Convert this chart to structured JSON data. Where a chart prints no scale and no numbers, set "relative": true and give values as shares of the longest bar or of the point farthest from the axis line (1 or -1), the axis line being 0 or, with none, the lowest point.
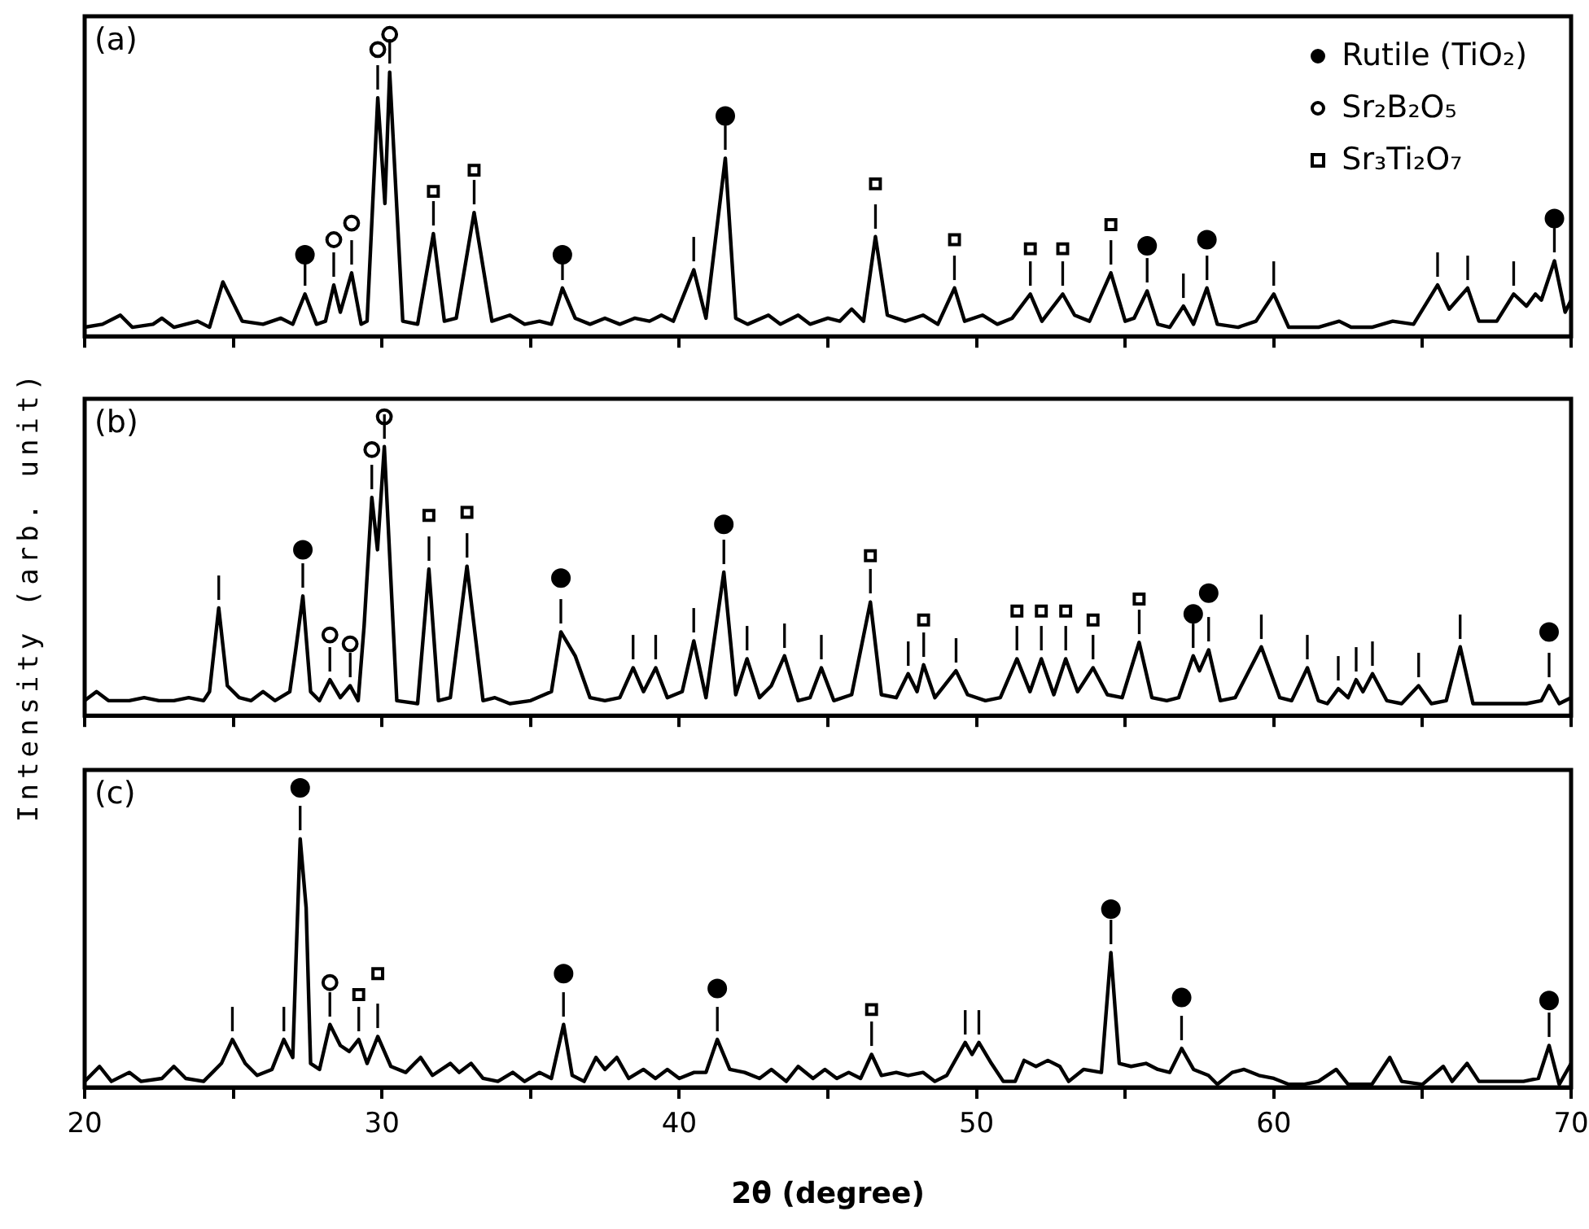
{
  "chart_data": [
    {
      "type": "line",
      "relative": true,
      "xlim": [
        20,
        70
      ],
      "xticks": [
        20,
        {
          "value": 25,
          "label": null
        },
        30,
        {
          "value": 35,
          "label": null
        },
        40,
        {
          "value": 45,
          "label": null
        },
        50,
        {
          "value": 55,
          "label": null
        },
        60,
        {
          "value": 65,
          "label": null
        },
        70
      ],
      "tick_labels": false,
      "legend": "top right",
      "annotations": [
        "(a)",
        {
          "text": "|",
          "x": 27.41,
          "y": 0.14
        },
        {
          "text": "|",
          "x": 36.07,
          "y": 0.16
        },
        {
          "text": "|",
          "x": 41.55,
          "y": 0.59
        },
        {
          "text": "|",
          "x": 55.74,
          "y": 0.15
        },
        {
          "text": "|",
          "x": 57.75,
          "y": 0.16
        },
        {
          "text": "|",
          "x": 69.44,
          "y": 0.25
        },
        {
          "text": "|",
          "x": 28.38,
          "y": 0.17
        },
        {
          "text": "|",
          "x": 28.98,
          "y": 0.21
        },
        {
          "text": "|",
          "x": 29.86,
          "y": 0.79
        },
        {
          "text": "|",
          "x": 30.26,
          "y": 0.875
        },
        {
          "text": "|",
          "x": 31.73,
          "y": 0.34
        },
        {
          "text": "|",
          "x": 33.1,
          "y": 0.41
        },
        {
          "text": "|",
          "x": 46.6,
          "y": 0.33
        },
        {
          "text": "|",
          "x": 49.26,
          "y": 0.16
        },
        {
          "text": "|",
          "x": 51.81,
          "y": 0.14
        },
        {
          "text": "|",
          "x": 52.9,
          "y": 0.14
        },
        {
          "text": "|",
          "x": 54.52,
          "y": 0.21
        },
        {
          "text": "|",
          "x": 40.49,
          "y": 0.22
        },
        {
          "text": "|",
          "x": 56.96,
          "y": 0.1
        },
        {
          "text": "|",
          "x": 60.0,
          "y": 0.14
        },
        {
          "text": "|",
          "x": 65.51,
          "y": 0.17
        },
        {
          "text": "|",
          "x": 66.52,
          "y": 0.16
        },
        {
          "text": "|",
          "x": 68.07,
          "y": 0.14
        }
      ],
      "series": [
        {
          "color": "#000000",
          "marker": "none",
          "x": [
            20,
            20.6,
            21.2,
            21.6,
            22.3,
            22.6,
            23.0,
            23.8,
            24.2,
            24.65,
            25.3,
            26.0,
            26.6,
            27.0,
            27.41,
            27.8,
            28.1,
            28.38,
            28.6,
            28.98,
            29.3,
            29.5,
            29.86,
            30.1,
            30.26,
            30.7,
            31.2,
            31.73,
            32.1,
            32.5,
            33.1,
            33.7,
            34.3,
            34.8,
            35.3,
            35.7,
            36.07,
            36.5,
            37.0,
            37.5,
            38.0,
            38.5,
            39.0,
            39.4,
            39.8,
            40.49,
            40.9,
            41.55,
            41.9,
            42.3,
            43.0,
            43.4,
            44.0,
            44.4,
            45.0,
            45.4,
            45.8,
            46.2,
            46.6,
            47.0,
            47.6,
            48.2,
            48.7,
            49.26,
            49.6,
            50.2,
            50.7,
            51.2,
            51.81,
            52.2,
            52.9,
            53.3,
            53.8,
            54.52,
            55.0,
            55.3,
            55.74,
            56.1,
            56.5,
            56.96,
            57.3,
            57.75,
            58.1,
            58.8,
            59.4,
            60.0,
            60.5,
            61.5,
            62.2,
            62.6,
            63.3,
            64.0,
            64.7,
            65.51,
            65.9,
            66.52,
            66.9,
            67.5,
            68.07,
            68.5,
            68.8,
            69.0,
            69.44,
            69.8,
            70
          ],
          "values": [
            0.03,
            0.04,
            0.07,
            0.03,
            0.04,
            0.06,
            0.03,
            0.05,
            0.03,
            0.18,
            0.05,
            0.04,
            0.06,
            0.04,
            0.14,
            0.04,
            0.05,
            0.17,
            0.08,
            0.21,
            0.04,
            0.05,
            0.79,
            0.44,
            0.875,
            0.05,
            0.04,
            0.34,
            0.05,
            0.06,
            0.41,
            0.05,
            0.07,
            0.04,
            0.05,
            0.04,
            0.16,
            0.06,
            0.04,
            0.06,
            0.04,
            0.06,
            0.05,
            0.07,
            0.05,
            0.22,
            0.06,
            0.59,
            0.06,
            0.04,
            0.07,
            0.04,
            0.07,
            0.04,
            0.06,
            0.05,
            0.09,
            0.05,
            0.33,
            0.07,
            0.05,
            0.07,
            0.04,
            0.16,
            0.05,
            0.07,
            0.04,
            0.06,
            0.14,
            0.05,
            0.14,
            0.07,
            0.05,
            0.21,
            0.05,
            0.06,
            0.15,
            0.04,
            0.03,
            0.1,
            0.04,
            0.16,
            0.04,
            0.03,
            0.05,
            0.14,
            0.03,
            0.03,
            0.05,
            0.03,
            0.03,
            0.05,
            0.04,
            0.17,
            0.09,
            0.16,
            0.05,
            0.05,
            0.14,
            0.1,
            0.14,
            0.12,
            0.25,
            0.08,
            0.12
          ]
        },
        {
          "name": "Rutile (TiO₂)",
          "type": "scatter",
          "marker": "circle",
          "color": "#000000",
          "x": [
            27.41,
            36.07,
            41.55,
            55.74,
            57.75,
            69.44
          ],
          "values": [
            0.27,
            0.27,
            0.73,
            0.3,
            0.32,
            0.39
          ]
        },
        {
          "name": "Sr₂B₂O₅",
          "type": "scatter",
          "marker": "circle",
          "color": "#ffffff",
          "x": [
            28.38,
            28.98,
            29.86,
            30.26
          ],
          "values": [
            0.32,
            0.375,
            0.95,
            1.0
          ]
        },
        {
          "name": "Sr₃Ti₂O₇",
          "type": "scatter",
          "marker": "square",
          "color": "#ffffff",
          "x": [
            31.73,
            33.1,
            46.6,
            49.26,
            51.81,
            52.9,
            54.52
          ],
          "values": [
            0.48,
            0.55,
            0.505,
            0.32,
            0.29,
            0.29,
            0.37
          ]
        }
      ]
    },
    {
      "type": "line",
      "relative": true,
      "xlim": [
        20,
        70
      ],
      "xticks": [
        20,
        {
          "value": 25,
          "label": null
        },
        30,
        {
          "value": 35,
          "label": null
        },
        40,
        {
          "value": 45,
          "label": null
        },
        50,
        {
          "value": 55,
          "label": null
        },
        60,
        {
          "value": 65,
          "label": null
        },
        70
      ],
      "tick_labels": false,
      "ylabel": "Intensity (arb. unit)",
      "annotations": [
        "(b)",
        {
          "text": "|",
          "x": 27.34,
          "y": 0.4
        },
        {
          "text": "|",
          "x": 36.02,
          "y": 0.28
        },
        {
          "text": "|",
          "x": 41.5,
          "y": 0.48
        },
        {
          "text": "|",
          "x": 57.29,
          "y": 0.2
        },
        {
          "text": "|",
          "x": 57.81,
          "y": 0.22
        },
        {
          "text": "|",
          "x": 69.26,
          "y": 0.1
        },
        {
          "text": "|",
          "x": 28.25,
          "y": 0.12
        },
        {
          "text": "|",
          "x": 28.93,
          "y": 0.1
        },
        {
          "text": "|",
          "x": 29.66,
          "y": 0.73
        },
        {
          "text": "|",
          "x": 30.08,
          "y": 0.9
        },
        {
          "text": "|",
          "x": 31.58,
          "y": 0.49
        },
        {
          "text": "|",
          "x": 32.86,
          "y": 0.5
        },
        {
          "text": "|",
          "x": 46.43,
          "y": 0.38
        },
        {
          "text": "|",
          "x": 48.22,
          "y": 0.17
        },
        {
          "text": "|",
          "x": 51.36,
          "y": 0.19
        },
        {
          "text": "|",
          "x": 52.18,
          "y": 0.19
        },
        {
          "text": "|",
          "x": 53.0,
          "y": 0.19
        },
        {
          "text": "|",
          "x": 53.92,
          "y": 0.16
        },
        {
          "text": "|",
          "x": 55.47,
          "y": 0.245
        },
        {
          "text": "|",
          "x": 24.51,
          "y": 0.36
        },
        {
          "text": "|",
          "x": 38.45,
          "y": 0.16
        },
        {
          "text": "|",
          "x": 39.21,
          "y": 0.16
        },
        {
          "text": "|",
          "x": 40.49,
          "y": 0.25
        },
        {
          "text": "|",
          "x": 42.28,
          "y": 0.19
        },
        {
          "text": "|",
          "x": 43.54,
          "y": 0.2
        },
        {
          "text": "|",
          "x": 44.78,
          "y": 0.16
        },
        {
          "text": "|",
          "x": 47.7,
          "y": 0.14
        },
        {
          "text": "|",
          "x": 49.31,
          "y": 0.15
        },
        {
          "text": "|",
          "x": 59.58,
          "y": 0.23
        },
        {
          "text": "|",
          "x": 61.13,
          "y": 0.16
        },
        {
          "text": "|",
          "x": 62.17,
          "y": 0.09
        },
        {
          "text": "|",
          "x": 62.77,
          "y": 0.12
        },
        {
          "text": "|",
          "x": 63.32,
          "y": 0.14
        },
        {
          "text": "|",
          "x": 64.87,
          "y": 0.1
        },
        {
          "text": "|",
          "x": 66.27,
          "y": 0.23
        }
      ],
      "series": [
        {
          "color": "#000000",
          "marker": "none",
          "x": [
            20,
            20.4,
            20.8,
            21.5,
            22.0,
            22.5,
            23.0,
            23.5,
            24.0,
            24.2,
            24.51,
            24.8,
            25.2,
            25.6,
            26.0,
            26.4,
            26.9,
            27.1,
            27.34,
            27.6,
            27.9,
            28.25,
            28.6,
            28.93,
            29.2,
            29.4,
            29.66,
            29.85,
            30.08,
            30.5,
            31.2,
            31.58,
            31.9,
            32.3,
            32.86,
            33.4,
            33.8,
            34.3,
            35.0,
            35.7,
            36.02,
            36.5,
            37.0,
            37.5,
            38.0,
            38.45,
            38.8,
            39.21,
            39.6,
            40.1,
            40.49,
            40.9,
            41.5,
            41.9,
            42.28,
            42.7,
            43.1,
            43.54,
            44.0,
            44.4,
            44.78,
            45.2,
            45.8,
            46.43,
            46.8,
            47.3,
            47.7,
            48.0,
            48.22,
            48.6,
            49.31,
            49.7,
            50.3,
            50.8,
            51.36,
            51.8,
            52.18,
            52.6,
            53.0,
            53.4,
            53.92,
            54.4,
            54.9,
            55.47,
            55.9,
            56.4,
            56.8,
            57.29,
            57.5,
            57.81,
            58.2,
            58.7,
            59.58,
            60.2,
            60.6,
            61.13,
            61.5,
            61.8,
            62.17,
            62.5,
            62.77,
            63.0,
            63.32,
            63.8,
            64.3,
            64.87,
            65.3,
            65.8,
            66.27,
            66.7,
            67.5,
            68.5,
            69.0,
            69.26,
            69.6,
            70
          ],
          "values": [
            0.05,
            0.08,
            0.05,
            0.05,
            0.06,
            0.05,
            0.05,
            0.06,
            0.05,
            0.08,
            0.36,
            0.1,
            0.06,
            0.05,
            0.08,
            0.05,
            0.08,
            0.22,
            0.4,
            0.08,
            0.05,
            0.12,
            0.06,
            0.1,
            0.05,
            0.3,
            0.73,
            0.555,
            0.9,
            0.05,
            0.04,
            0.49,
            0.05,
            0.06,
            0.5,
            0.05,
            0.06,
            0.04,
            0.05,
            0.08,
            0.28,
            0.2,
            0.06,
            0.05,
            0.06,
            0.16,
            0.08,
            0.16,
            0.06,
            0.08,
            0.25,
            0.06,
            0.48,
            0.07,
            0.19,
            0.06,
            0.1,
            0.2,
            0.05,
            0.06,
            0.16,
            0.05,
            0.07,
            0.38,
            0.07,
            0.06,
            0.14,
            0.08,
            0.17,
            0.06,
            0.15,
            0.07,
            0.05,
            0.06,
            0.19,
            0.08,
            0.19,
            0.07,
            0.19,
            0.08,
            0.16,
            0.07,
            0.06,
            0.245,
            0.06,
            0.05,
            0.06,
            0.2,
            0.15,
            0.22,
            0.05,
            0.06,
            0.23,
            0.06,
            0.05,
            0.16,
            0.05,
            0.04,
            0.09,
            0.06,
            0.12,
            0.08,
            0.14,
            0.05,
            0.04,
            0.1,
            0.04,
            0.05,
            0.23,
            0.04,
            0.04,
            0.04,
            0.05,
            0.1,
            0.04,
            0.06
          ]
        },
        {
          "type": "scatter",
          "marker": "circle",
          "color": "#000000",
          "x": [
            27.34,
            36.02,
            41.5,
            57.29,
            57.81,
            69.26
          ],
          "values": [
            0.555,
            0.46,
            0.64,
            0.34,
            0.41,
            0.28
          ]
        },
        {
          "type": "scatter",
          "marker": "circle",
          "color": "#ffffff",
          "x": [
            28.25,
            28.93,
            29.66,
            30.08
          ],
          "values": [
            0.27,
            0.24,
            0.89,
            1.0
          ]
        },
        {
          "type": "scatter",
          "marker": "square",
          "color": "#ffffff",
          "x": [
            31.58,
            32.86,
            46.43,
            48.22,
            51.36,
            52.18,
            53.0,
            53.92,
            55.47
          ],
          "values": [
            0.67,
            0.68,
            0.535,
            0.32,
            0.35,
            0.35,
            0.35,
            0.32,
            0.39
          ]
        }
      ]
    },
    {
      "type": "line",
      "relative": true,
      "xlim": [
        20,
        70
      ],
      "xticks": [
        20,
        {
          "value": 25,
          "label": null
        },
        30,
        {
          "value": 35,
          "label": null
        },
        40,
        {
          "value": 45,
          "label": null
        },
        50,
        {
          "value": 55,
          "label": null
        },
        60,
        {
          "value": 65,
          "label": null
        },
        70
      ],
      "tick_labels": "x",
      "xlabel": "2θ (degree)",
      "annotations": [
        "(c)",
        {
          "text": "|",
          "x": 27.25,
          "y": 0.83
        },
        {
          "text": "|",
          "x": 36.11,
          "y": 0.21
        },
        {
          "text": "|",
          "x": 41.28,
          "y": 0.16
        },
        {
          "text": "|",
          "x": 54.52,
          "y": 0.45
        },
        {
          "text": "|",
          "x": 56.9,
          "y": 0.13
        },
        {
          "text": "|",
          "x": 69.26,
          "y": 0.14
        },
        {
          "text": "|",
          "x": 28.25,
          "y": 0.21
        },
        {
          "text": "|",
          "x": 29.22,
          "y": 0.16
        },
        {
          "text": "|",
          "x": 29.86,
          "y": 0.17
        },
        {
          "text": "|",
          "x": 46.47,
          "y": 0.11
        },
        {
          "text": "|",
          "x": 24.97,
          "y": 0.16
        },
        {
          "text": "|",
          "x": 26.7,
          "y": 0.16
        },
        {
          "text": "|",
          "x": 49.62,
          "y": 0.15
        },
        {
          "text": "|",
          "x": 50.08,
          "y": 0.15
        }
      ],
      "series": [
        {
          "color": "#000000",
          "marker": "none",
          "x": [
            20,
            20.5,
            20.9,
            21.5,
            21.9,
            22.6,
            23.0,
            23.4,
            24.0,
            24.3,
            24.6,
            24.97,
            25.4,
            25.8,
            26.3,
            26.7,
            27.0,
            27.1,
            27.25,
            27.45,
            27.6,
            27.9,
            28.25,
            28.6,
            28.9,
            29.22,
            29.5,
            29.86,
            30.3,
            30.8,
            31.3,
            31.7,
            32.3,
            32.6,
            33.0,
            33.4,
            33.9,
            34.4,
            34.8,
            35.3,
            35.7,
            36.11,
            36.4,
            36.8,
            37.2,
            37.5,
            37.9,
            38.3,
            38.8,
            39.2,
            39.6,
            40.0,
            40.5,
            40.9,
            41.28,
            41.7,
            42.2,
            42.7,
            43.1,
            43.6,
            44.0,
            44.5,
            44.9,
            45.3,
            45.7,
            46.1,
            46.47,
            46.8,
            47.3,
            47.7,
            48.2,
            48.6,
            49.0,
            49.62,
            49.85,
            50.08,
            50.5,
            50.9,
            51.3,
            51.6,
            52.0,
            52.4,
            52.8,
            53.1,
            53.6,
            54.2,
            54.52,
            54.8,
            55.2,
            55.7,
            56.1,
            56.5,
            56.9,
            57.3,
            57.8,
            58.1,
            58.6,
            59.0,
            59.5,
            60.0,
            60.5,
            61.0,
            61.5,
            62.1,
            62.5,
            63.3,
            63.9,
            64.3,
            65.0,
            65.7,
            66.0,
            66.5,
            66.9,
            67.6,
            68.4,
            68.9,
            69.26,
            69.6,
            70
          ],
          "values": [
            0.02,
            0.07,
            0.02,
            0.05,
            0.02,
            0.03,
            0.07,
            0.03,
            0.02,
            0.05,
            0.08,
            0.16,
            0.08,
            0.04,
            0.06,
            0.16,
            0.1,
            0.4,
            0.83,
            0.6,
            0.08,
            0.06,
            0.21,
            0.14,
            0.12,
            0.16,
            0.08,
            0.17,
            0.07,
            0.05,
            0.1,
            0.04,
            0.08,
            0.05,
            0.08,
            0.03,
            0.02,
            0.05,
            0.02,
            0.05,
            0.03,
            0.21,
            0.04,
            0.02,
            0.1,
            0.06,
            0.1,
            0.03,
            0.06,
            0.03,
            0.06,
            0.03,
            0.05,
            0.05,
            0.16,
            0.06,
            0.05,
            0.03,
            0.06,
            0.02,
            0.07,
            0.03,
            0.06,
            0.03,
            0.05,
            0.03,
            0.11,
            0.04,
            0.05,
            0.04,
            0.05,
            0.02,
            0.04,
            0.15,
            0.11,
            0.15,
            0.08,
            0.02,
            0.02,
            0.09,
            0.07,
            0.09,
            0.07,
            0.02,
            0.06,
            0.05,
            0.45,
            0.08,
            0.07,
            0.08,
            0.06,
            0.05,
            0.13,
            0.06,
            0.04,
            0.01,
            0.05,
            0.06,
            0.04,
            0.03,
            0.01,
            0.01,
            0.02,
            0.06,
            0.01,
            0.01,
            0.1,
            0.02,
            0.01,
            0.07,
            0.02,
            0.08,
            0.02,
            0.02,
            0.02,
            0.03,
            0.14,
            0.01,
            0.08
          ]
        },
        {
          "type": "scatter",
          "marker": "circle",
          "color": "#000000",
          "x": [
            27.25,
            36.11,
            41.28,
            54.52,
            56.9,
            69.26
          ],
          "values": [
            1.0,
            0.38,
            0.33,
            0.595,
            0.3,
            0.29
          ]
        },
        {
          "type": "scatter",
          "marker": "circle",
          "color": "#ffffff",
          "x": [
            28.25
          ],
          "values": [
            0.35
          ]
        },
        {
          "type": "scatter",
          "marker": "square",
          "color": "#ffffff",
          "x": [
            29.22,
            29.86,
            46.47
          ],
          "values": [
            0.31,
            0.38,
            0.26
          ]
        }
      ]
    }
  ]
}
